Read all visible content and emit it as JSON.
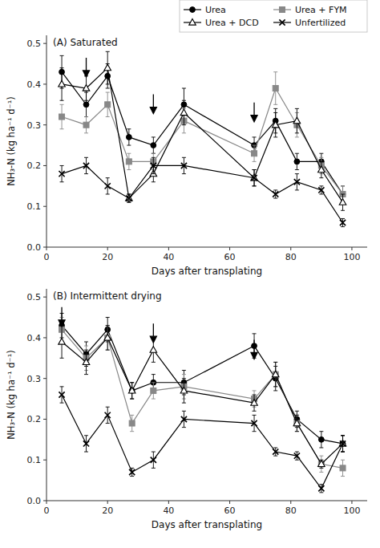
{
  "chart_data": [
    {
      "type": "line",
      "title": "(A) Saturated",
      "xlabel": "Days after transplating",
      "ylabel": "NH₃-N (kg ha⁻¹ d⁻¹)",
      "x": [
        5,
        13,
        20,
        27,
        35,
        45,
        68,
        75,
        82,
        90,
        97
      ],
      "series": [
        {
          "name": "Urea",
          "color": "#000000",
          "marker": "circle",
          "values": [
            0.43,
            0.35,
            0.42,
            0.27,
            0.25,
            0.35,
            0.25,
            0.31,
            0.21,
            0.21,
            0.13
          ],
          "errors": [
            0.04,
            0.03,
            0.03,
            0.02,
            0.02,
            0.04,
            0.02,
            0.03,
            0.02,
            0.02,
            0.02
          ]
        },
        {
          "name": "Urea + FYM",
          "color": "#888888",
          "marker": "square",
          "values": [
            0.32,
            0.3,
            0.35,
            0.21,
            0.21,
            0.31,
            0.23,
            0.39,
            0.3,
            0.2,
            0.13
          ],
          "errors": [
            0.03,
            0.02,
            0.03,
            0.02,
            0.02,
            0.03,
            0.02,
            0.04,
            0.03,
            0.02,
            0.02
          ]
        },
        {
          "name": "Urea + DCD",
          "color": "#000000",
          "marker": "open-triangle",
          "values": [
            0.4,
            0.39,
            0.44,
            0.12,
            0.18,
            0.33,
            0.17,
            0.3,
            0.31,
            0.19,
            0.11
          ],
          "errors": [
            0.04,
            0.03,
            0.04,
            0.01,
            0.02,
            0.03,
            0.02,
            0.03,
            0.03,
            0.02,
            0.02
          ]
        },
        {
          "name": "Unfertilized",
          "color": "#000000",
          "marker": "x",
          "values": [
            0.18,
            0.2,
            0.15,
            0.12,
            0.2,
            0.2,
            0.17,
            0.13,
            0.16,
            0.14,
            0.06
          ],
          "errors": [
            0.02,
            0.02,
            0.02,
            0.01,
            0.02,
            0.02,
            0.02,
            0.01,
            0.02,
            0.01,
            0.01
          ]
        }
      ],
      "arrows": {
        "x": [
          13,
          35,
          68
        ],
        "y": [
          0.465,
          0.375,
          0.355
        ]
      },
      "xlim": [
        0,
        105
      ],
      "xticks": [
        0,
        20,
        40,
        60,
        80,
        100
      ],
      "ylim": [
        0.0,
        0.52
      ],
      "yticks": [
        {
          "value": 0.0,
          "label": "0.0"
        },
        0.1,
        0.2,
        0.3,
        0.4,
        0.5
      ],
      "grid": false,
      "legend": "upper right"
    },
    {
      "type": "line",
      "title": "(B) Intermittent drying",
      "xlabel": "Days after transplating",
      "ylabel": "NH₃-N (kg ha⁻¹ d⁻¹)",
      "x": [
        5,
        13,
        20,
        28,
        35,
        45,
        68,
        75,
        82,
        90,
        97
      ],
      "series": [
        {
          "name": "Urea",
          "color": "#000000",
          "marker": "circle",
          "values": [
            0.43,
            0.36,
            0.42,
            0.27,
            0.29,
            0.29,
            0.38,
            0.3,
            0.2,
            0.15,
            0.14
          ],
          "errors": [
            0.03,
            0.03,
            0.03,
            0.02,
            0.02,
            0.03,
            0.03,
            0.03,
            0.02,
            0.02,
            0.02
          ]
        },
        {
          "name": "Urea + FYM",
          "color": "#888888",
          "marker": "square",
          "values": [
            0.42,
            0.35,
            0.4,
            0.19,
            0.27,
            0.28,
            0.25,
            0.31,
            0.19,
            0.09,
            0.08
          ],
          "errors": [
            0.03,
            0.03,
            0.03,
            0.02,
            0.02,
            0.03,
            0.02,
            0.03,
            0.02,
            0.02,
            0.02
          ]
        },
        {
          "name": "Urea + DCD",
          "color": "#000000",
          "marker": "open-triangle",
          "values": [
            0.39,
            0.34,
            0.4,
            0.27,
            0.37,
            0.27,
            0.24,
            0.31,
            0.19,
            0.09,
            0.14
          ],
          "errors": [
            0.04,
            0.03,
            0.03,
            0.02,
            0.03,
            0.03,
            0.02,
            0.03,
            0.02,
            0.01,
            0.02
          ]
        },
        {
          "name": "Unfertilized",
          "color": "#000000",
          "marker": "x",
          "values": [
            0.26,
            0.14,
            0.21,
            0.07,
            0.1,
            0.2,
            0.19,
            0.12,
            0.11,
            0.03,
            0.14
          ],
          "errors": [
            0.02,
            0.02,
            0.02,
            0.01,
            0.02,
            0.02,
            0.02,
            0.01,
            0.01,
            0.01,
            0.02
          ]
        }
      ],
      "arrows": {
        "x": [
          5,
          35,
          68
        ],
        "y": [
          0.475,
          0.435,
          0.395
        ]
      },
      "xlim": [
        0,
        105
      ],
      "xticks": [
        0,
        20,
        40,
        60,
        80,
        100
      ],
      "ylim": [
        0.0,
        0.52
      ],
      "yticks": [
        {
          "value": 0.0,
          "label": "0.0"
        },
        0.1,
        0.2,
        0.3,
        0.4,
        0.5
      ],
      "grid": false
    }
  ]
}
